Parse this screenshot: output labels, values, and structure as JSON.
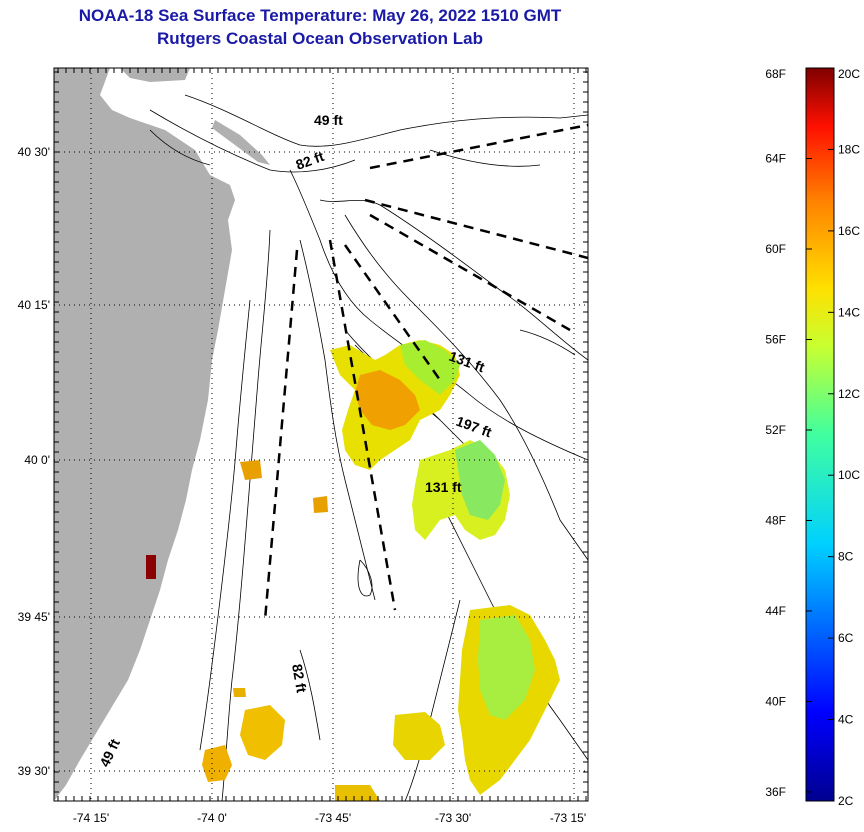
{
  "title": "NOAA-18 Sea Surface Temperature:  May 26, 2022 1510 GMT",
  "subtitle": "Rutgers Coastal Ocean Observation Lab",
  "map": {
    "lat_ticks": [
      {
        "label": "40 30'",
        "value": 40.5
      },
      {
        "label": "40 15'",
        "value": 40.25
      },
      {
        "label": "40 0'",
        "value": 40.0
      },
      {
        "label": "39 45'",
        "value": 39.75
      },
      {
        "label": "39 30'",
        "value": 39.5
      }
    ],
    "lon_ticks": [
      {
        "label": "-74 15'",
        "value": -74.25
      },
      {
        "label": "-74 0'",
        "value": -74.0
      },
      {
        "label": "-73 45'",
        "value": -73.75
      },
      {
        "label": "-73 30'",
        "value": -73.5
      },
      {
        "label": "-73 15'",
        "value": -73.25
      }
    ],
    "contour_labels": [
      "49 ft",
      "82 ft",
      "131 ft",
      "197 ft",
      "131 ft",
      "82 ft",
      "49 ft"
    ],
    "land_color": "#b0b0b0"
  },
  "colorbar": {
    "fahrenheit_labels": [
      "68F",
      "64F",
      "60F",
      "56F",
      "52F",
      "48F",
      "44F",
      "40F",
      "36F"
    ],
    "celsius_labels": [
      "20C",
      "18C",
      "16C",
      "14C",
      "12C",
      "10C",
      "8C",
      "6C",
      "4C",
      "2C"
    ],
    "range_c": [
      2,
      20
    ]
  }
}
